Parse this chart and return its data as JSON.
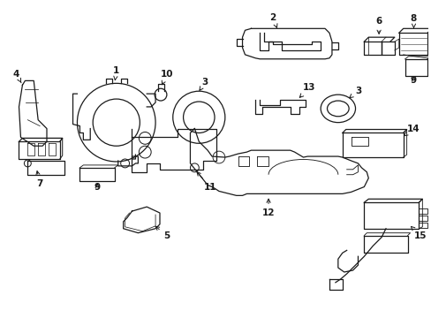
{
  "background_color": "#ffffff",
  "line_color": "#1a1a1a",
  "line_width": 0.9,
  "label_fontsize": 7.5,
  "figsize": [
    4.89,
    3.6
  ],
  "dpi": 100
}
